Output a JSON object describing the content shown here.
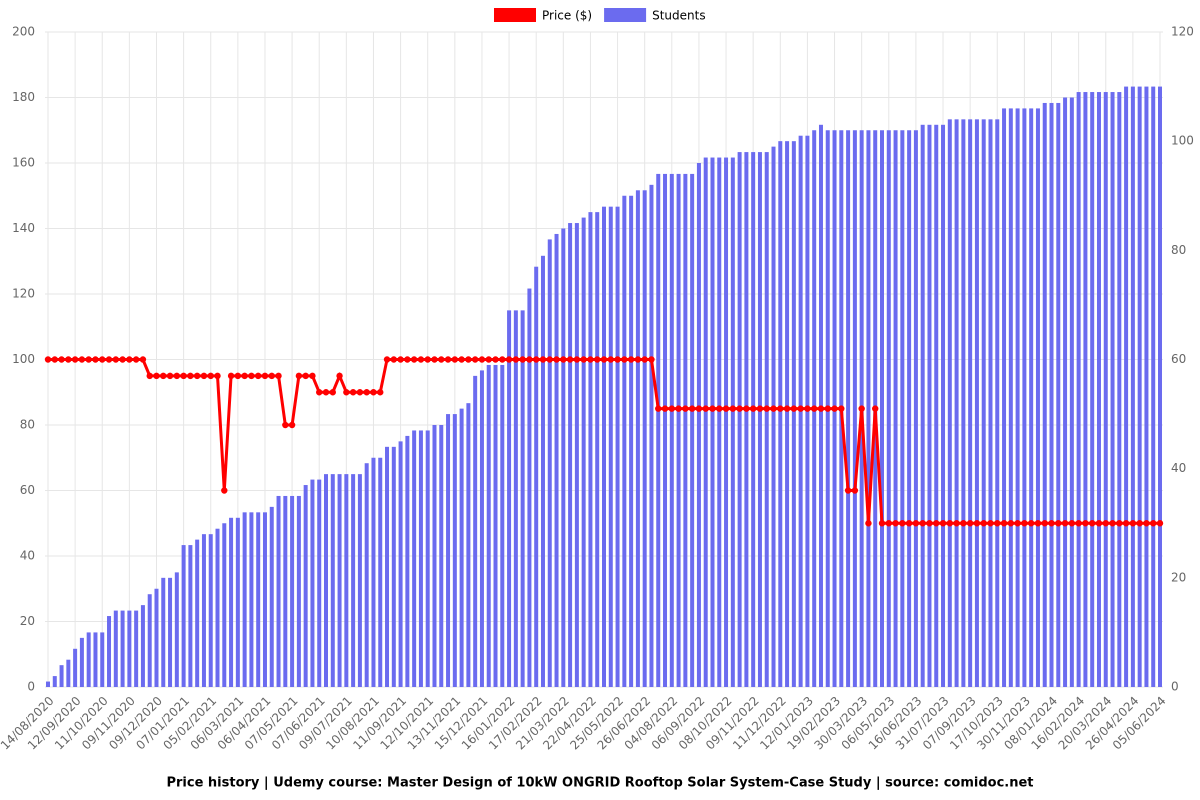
{
  "chart_data": {
    "type": "combo",
    "title": "Price history | Udemy course: Master Design of 10kW ONGRID Rooftop Solar System-Case Study | source: comidoc.net",
    "categories": [
      "14/08/2020",
      null,
      null,
      null,
      "12/09/2020",
      null,
      null,
      null,
      "11/10/2020",
      null,
      null,
      null,
      "09/11/2020",
      null,
      null,
      null,
      "09/12/2020",
      null,
      null,
      null,
      "07/01/2021",
      null,
      null,
      null,
      "05/02/2021",
      null,
      null,
      null,
      "06/03/2021",
      null,
      null,
      null,
      "06/04/2021",
      null,
      null,
      null,
      "07/05/2021",
      null,
      null,
      null,
      "07/06/2021",
      null,
      null,
      null,
      "09/07/2021",
      null,
      null,
      null,
      "10/08/2021",
      null,
      null,
      null,
      "11/09/2021",
      null,
      null,
      null,
      "12/10/2021",
      null,
      null,
      null,
      "13/11/2021",
      null,
      null,
      null,
      "15/12/2021",
      null,
      null,
      null,
      "16/01/2022",
      null,
      null,
      null,
      "17/02/2022",
      null,
      null,
      null,
      "21/03/2022",
      null,
      null,
      null,
      "22/04/2022",
      null,
      null,
      null,
      "25/05/2022",
      null,
      null,
      null,
      "26/06/2022",
      null,
      null,
      null,
      "04/08/2022",
      null,
      null,
      null,
      "06/09/2022",
      null,
      null,
      null,
      "08/10/2022",
      null,
      null,
      null,
      "09/11/2022",
      null,
      null,
      null,
      "11/12/2022",
      null,
      null,
      null,
      "12/01/2023",
      null,
      null,
      null,
      "19/02/2023",
      null,
      null,
      null,
      "30/03/2023",
      null,
      null,
      null,
      "06/05/2023",
      null,
      null,
      null,
      "16/06/2023",
      null,
      null,
      null,
      "31/07/2023",
      null,
      null,
      null,
      "07/09/2023",
      null,
      null,
      null,
      "17/10/2023",
      null,
      null,
      null,
      "30/11/2023",
      null,
      null,
      null,
      "08/01/2024",
      null,
      null,
      null,
      "16/02/2024",
      null,
      null,
      null,
      "20/03/2024",
      null,
      null,
      null,
      "26/04/2024",
      null,
      null,
      null,
      "05/06/2024"
    ],
    "series": [
      {
        "name": "Price ($)",
        "type": "line",
        "color": "#ff0000",
        "values": [
          100,
          100,
          100,
          100,
          100,
          100,
          100,
          100,
          100,
          100,
          100,
          100,
          100,
          100,
          100,
          95,
          95,
          95,
          95,
          95,
          95,
          95,
          95,
          95,
          95,
          95,
          60,
          95,
          95,
          95,
          95,
          95,
          95,
          95,
          95,
          80,
          80,
          95,
          95,
          95,
          90,
          90,
          90,
          95,
          90,
          90,
          90,
          90,
          90,
          90,
          100,
          100,
          100,
          100,
          100,
          100,
          100,
          100,
          100,
          100,
          100,
          100,
          100,
          100,
          100,
          100,
          100,
          100,
          100,
          100,
          100,
          100,
          100,
          100,
          100,
          100,
          100,
          100,
          100,
          100,
          100,
          100,
          100,
          100,
          100,
          100,
          100,
          100,
          100,
          100,
          85,
          85,
          85,
          85,
          85,
          85,
          85,
          85,
          85,
          85,
          85,
          85,
          85,
          85,
          85,
          85,
          85,
          85,
          85,
          85,
          85,
          85,
          85,
          85,
          85,
          85,
          85,
          85,
          60,
          60,
          85,
          50,
          85,
          50,
          50,
          50,
          50,
          50,
          50,
          50,
          50,
          50,
          50,
          50,
          50,
          50,
          50,
          50,
          50,
          50,
          50,
          50,
          50,
          50,
          50,
          50,
          50,
          50,
          50,
          50,
          50,
          50,
          50,
          50,
          50,
          50,
          50,
          50,
          50,
          50,
          50,
          50,
          50,
          50,
          50
        ]
      },
      {
        "name": "Students",
        "type": "bar",
        "axis": "y2",
        "color": "#6b6bef",
        "values": [
          1,
          2,
          4,
          5,
          7,
          9,
          10,
          10,
          10,
          13,
          14,
          14,
          14,
          14,
          15,
          17,
          18,
          20,
          20,
          21,
          26,
          26,
          27,
          28,
          28,
          29,
          30,
          31,
          31,
          32,
          32,
          32,
          32,
          33,
          35,
          35,
          35,
          35,
          37,
          38,
          38,
          39,
          39,
          39,
          39,
          39,
          39,
          41,
          42,
          42,
          44,
          44,
          45,
          46,
          47,
          47,
          47,
          48,
          48,
          50,
          50,
          51,
          52,
          57,
          58,
          59,
          59,
          59,
          69,
          69,
          69,
          73,
          77,
          79,
          82,
          83,
          84,
          85,
          85,
          86,
          87,
          87,
          88,
          88,
          88,
          90,
          90,
          91,
          91,
          92,
          94,
          94,
          94,
          94,
          94,
          94,
          96,
          97,
          97,
          97,
          97,
          97,
          98,
          98,
          98,
          98,
          98,
          99,
          100,
          100,
          100,
          101,
          101,
          102,
          103,
          102,
          102,
          102,
          102,
          102,
          102,
          102,
          102,
          102,
          102,
          102,
          102,
          102,
          102,
          103,
          103,
          103,
          103,
          104,
          104,
          104,
          104,
          104,
          104,
          104,
          104,
          106,
          106,
          106,
          106,
          106,
          106,
          107,
          107,
          107,
          108,
          108,
          109,
          109,
          109,
          109,
          109,
          109,
          109,
          110,
          110,
          110,
          110,
          110,
          110
        ]
      }
    ],
    "ylim": [
      0,
      200
    ],
    "yticks": [
      0,
      20,
      40,
      60,
      80,
      100,
      120,
      140,
      160,
      180,
      200
    ],
    "y2lim": [
      0,
      120
    ],
    "y2ticks": [
      0,
      20,
      40,
      60,
      80,
      100,
      120
    ],
    "grid": true
  }
}
